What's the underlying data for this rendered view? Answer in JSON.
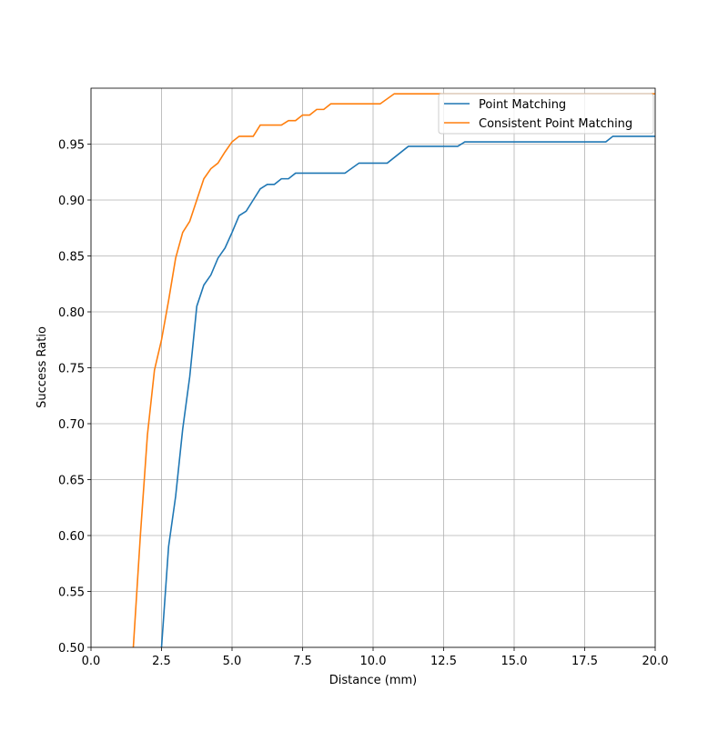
{
  "chart_data": {
    "type": "line",
    "xlabel": "Distance (mm)",
    "ylabel": "Success Ratio",
    "xlim": [
      0,
      20
    ],
    "ylim": [
      0.5,
      1.0
    ],
    "xticks": [
      {
        "value": 0,
        "label": "0.0"
      },
      2.5,
      {
        "value": 5,
        "label": "5.0"
      },
      7.5,
      {
        "value": 10,
        "label": "10.0"
      },
      12.5,
      {
        "value": 15,
        "label": "15.0"
      },
      17.5,
      {
        "value": 20,
        "label": "20.0"
      }
    ],
    "yticks": [
      {
        "value": 0.5,
        "label": "0.50"
      },
      0.55,
      {
        "value": 0.6,
        "label": "0.60"
      },
      0.65,
      {
        "value": 0.7,
        "label": "0.70"
      },
      0.75,
      {
        "value": 0.8,
        "label": "0.80"
      },
      0.85,
      {
        "value": 0.9,
        "label": "0.90"
      },
      0.95
    ],
    "grid": true,
    "legend": "upper right",
    "series": [
      {
        "name": "Point Matching",
        "color": "#1f77b4",
        "x": [
          2.5,
          2.75,
          3.0,
          3.25,
          3.5,
          3.75,
          4.0,
          4.25,
          4.5,
          4.75,
          5.0,
          5.25,
          5.5,
          5.75,
          6.0,
          6.25,
          6.5,
          6.75,
          7.0,
          7.25,
          9.0,
          9.5,
          10.5,
          11.25,
          13.0,
          13.25,
          18.25,
          18.5,
          20
        ],
        "values": [
          0.5,
          0.59,
          0.635,
          0.695,
          0.742,
          0.805,
          0.824,
          0.833,
          0.848,
          0.857,
          0.871,
          0.886,
          0.89,
          0.9,
          0.91,
          0.914,
          0.914,
          0.919,
          0.919,
          0.924,
          0.924,
          0.933,
          0.933,
          0.948,
          0.948,
          0.952,
          0.952,
          0.957,
          0.957
        ]
      },
      {
        "name": "Consistent Point Matching",
        "color": "#ff7f0e",
        "x": [
          1.5,
          1.75,
          2.0,
          2.25,
          2.5,
          2.75,
          3.0,
          3.25,
          3.5,
          3.75,
          4.0,
          4.25,
          4.5,
          4.75,
          5.0,
          5.25,
          5.75,
          6.0,
          6.75,
          7.0,
          7.25,
          7.5,
          7.75,
          8.0,
          8.25,
          8.5,
          10.25,
          10.75,
          20
        ],
        "values": [
          0.5,
          0.6,
          0.69,
          0.748,
          0.775,
          0.81,
          0.848,
          0.871,
          0.881,
          0.9,
          0.919,
          0.928,
          0.933,
          0.943,
          0.952,
          0.957,
          0.957,
          0.967,
          0.967,
          0.971,
          0.971,
          0.976,
          0.976,
          0.981,
          0.981,
          0.986,
          0.986,
          0.995,
          0.995
        ]
      }
    ]
  }
}
